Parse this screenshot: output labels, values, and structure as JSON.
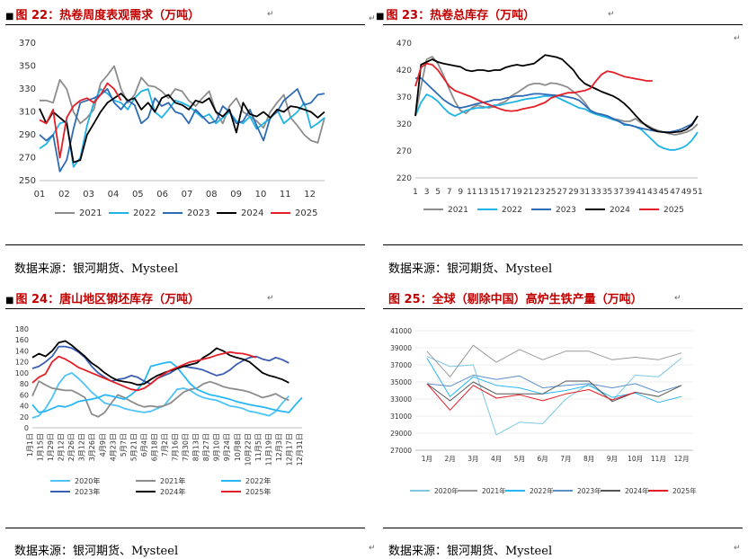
{
  "panels": [
    {
      "title_prefix": "图 22：",
      "title_text": "热卷周度表观需求（万吨）",
      "source": "数据来源：银河期货、Mysteel"
    },
    {
      "title_prefix": "图 23：",
      "title_text": "热卷总库存（万吨）",
      "source": "数据来源：银河期货、Mysteel"
    },
    {
      "title_prefix": "图 24：",
      "title_text": "唐山地区钢坯库存（万吨）",
      "source": "数据来源：银河期货、Mysteel"
    },
    {
      "title_prefix": "图 25：",
      "title_text": "全球（剔除中国）高炉生铁产量（万吨）",
      "source": "数据来源：银河期货、Mysteel"
    }
  ],
  "return_mark": "↵",
  "chart_data": [
    {
      "type": "line",
      "title": "热卷周度表观需求（万吨）",
      "x_labels": [
        "01",
        "02",
        "03",
        "04",
        "05",
        "06",
        "07",
        "08",
        "09",
        "10",
        "11",
        "12"
      ],
      "ylim": [
        250,
        370
      ],
      "yticks": [
        250,
        270,
        290,
        310,
        330,
        350,
        370
      ],
      "series": [
        {
          "name": "2021",
          "color": "#8c8c8c",
          "values": [
            320,
            320,
            318,
            338,
            330,
            310,
            300,
            305,
            312,
            335,
            342,
            350,
            330,
            318,
            325,
            340,
            333,
            332,
            328,
            322,
            330,
            328,
            320,
            315,
            322,
            328,
            310,
            300,
            315,
            322,
            310,
            306,
            302,
            296,
            310,
            318,
            325,
            305,
            298,
            290,
            285,
            283,
            305
          ]
        },
        {
          "name": "2022",
          "color": "#1eb4e6",
          "values": [
            278,
            282,
            290,
            300,
            302,
            262,
            270,
            298,
            318,
            330,
            326,
            320,
            318,
            312,
            322,
            328,
            330,
            310,
            305,
            312,
            320,
            318,
            315,
            310,
            305,
            308,
            300,
            305,
            310,
            302,
            300,
            306,
            295,
            300,
            304,
            312,
            300,
            305,
            310,
            318,
            296,
            300,
            305
          ]
        },
        {
          "name": "2023",
          "color": "#2e6bb5",
          "values": [
            290,
            285,
            290,
            258,
            268,
            295,
            318,
            320,
            322,
            325,
            330,
            318,
            312,
            320,
            316,
            300,
            305,
            322,
            315,
            318,
            310,
            308,
            300,
            312,
            306,
            300,
            302,
            315,
            310,
            300,
            302,
            312,
            298,
            285,
            305,
            310,
            320,
            325,
            330,
            316,
            318,
            325,
            326
          ]
        },
        {
          "name": "2024",
          "color": "#000000",
          "values": [
            313,
            300,
            310,
            305,
            300,
            266,
            268,
            290,
            300,
            310,
            318,
            322,
            326,
            320,
            322,
            312,
            318,
            310,
            322,
            325,
            318,
            316,
            312,
            320,
            318,
            322,
            310,
            306,
            312,
            292,
            318,
            308,
            306,
            310,
            305,
            312,
            310,
            315,
            314,
            312,
            310,
            305,
            310
          ]
        },
        {
          "name": "2025",
          "color": "#e41e26",
          "values": [
            303,
            300,
            312,
            270,
            305,
            315,
            320,
            322,
            318,
            325,
            335,
            330,
            320
          ]
        }
      ]
    },
    {
      "type": "line",
      "title": "热卷总库存（万吨）",
      "x_labels": [
        "1",
        "3",
        "5",
        "7",
        "9",
        "11",
        "13",
        "15",
        "17",
        "19",
        "21",
        "23",
        "25",
        "27",
        "29",
        "31",
        "33",
        "35",
        "37",
        "39",
        "41",
        "43",
        "45",
        "47",
        "49",
        "51"
      ],
      "ylim": [
        220,
        470
      ],
      "yticks": [
        220,
        270,
        320,
        370,
        420,
        470
      ],
      "series": [
        {
          "name": "2021",
          "color": "#8c8c8c",
          "values": [
            335,
            390,
            440,
            445,
            432,
            410,
            385,
            362,
            345,
            340,
            350,
            355,
            352,
            350,
            352,
            358,
            362,
            372,
            378,
            385,
            392,
            395,
            395,
            392,
            396,
            395,
            392,
            388,
            380,
            372,
            360,
            345,
            340,
            338,
            335,
            330,
            328,
            325,
            325,
            330,
            322,
            318,
            312,
            308,
            305,
            302,
            300,
            302,
            305,
            310,
            320
          ]
        },
        {
          "name": "2022",
          "color": "#1eb4e6",
          "values": [
            335,
            360,
            375,
            370,
            362,
            350,
            340,
            335,
            340,
            345,
            348,
            350,
            350,
            352,
            355,
            355,
            358,
            360,
            362,
            365,
            367,
            368,
            370,
            372,
            372,
            370,
            365,
            360,
            355,
            350,
            348,
            342,
            338,
            335,
            332,
            328,
            326,
            318,
            318,
            315,
            310,
            300,
            290,
            280,
            275,
            272,
            272,
            275,
            280,
            290,
            305
          ]
        },
        {
          "name": "2023",
          "color": "#2e6bb5",
          "values": [
            405,
            405,
            395,
            385,
            375,
            365,
            358,
            352,
            350,
            352,
            355,
            358,
            360,
            362,
            365,
            365,
            368,
            370,
            372,
            372,
            374,
            376,
            376,
            375,
            374,
            373,
            372,
            370,
            368,
            364,
            355,
            345,
            340,
            338,
            335,
            330,
            325,
            320,
            318,
            315,
            312,
            310,
            308,
            306,
            305,
            305,
            307,
            310,
            315,
            320,
            335
          ]
        },
        {
          "name": "2024",
          "color": "#000000",
          "values": [
            335,
            430,
            435,
            440,
            435,
            432,
            430,
            428,
            426,
            420,
            418,
            420,
            420,
            418,
            420,
            420,
            425,
            428,
            430,
            428,
            430,
            432,
            440,
            448,
            446,
            444,
            440,
            430,
            420,
            405,
            395,
            390,
            385,
            380,
            376,
            372,
            366,
            358,
            348,
            336,
            325,
            316,
            310,
            306,
            305,
            304,
            305,
            306,
            310,
            318,
            335
          ]
        },
        {
          "name": "2025",
          "color": "#e41e26",
          "values": [
            390,
            425,
            432,
            430,
            420,
            405,
            390,
            382,
            378,
            374,
            370,
            365,
            360,
            356,
            352,
            348,
            345,
            344,
            345,
            348,
            350,
            352,
            356,
            360,
            368,
            372,
            375,
            378,
            378,
            380,
            382,
            386,
            400,
            412,
            418,
            416,
            412,
            408,
            406,
            404,
            402,
            400,
            400
          ]
        }
      ]
    },
    {
      "type": "line",
      "title": "唐山地区钢坯库存（万吨）",
      "x_labels": [
        "1月1日",
        "1月15日",
        "1月29日",
        "2月12日",
        "2月26日",
        "3月12日",
        "3月26日",
        "4月9日",
        "4月23日",
        "5月7日",
        "5月21日",
        "6月4日",
        "6月18日",
        "7月2日",
        "7月16日",
        "7月30日",
        "8月13日",
        "8月27日",
        "9月10日",
        "9月24日",
        "10月8日",
        "10月22日",
        "11月5日",
        "11月19日",
        "12月3日",
        "12月17日",
        "12月31日"
      ],
      "ylim": [
        0,
        180
      ],
      "yticks": [
        0,
        20,
        40,
        60,
        80,
        100,
        120,
        140,
        160,
        180
      ],
      "series": [
        {
          "name": "2020年",
          "color": "#4fc3f7",
          "values": [
            18,
            22,
            35,
            55,
            80,
            95,
            100,
            90,
            78,
            65,
            55,
            45,
            42,
            40,
            35,
            32,
            30,
            28,
            30,
            35,
            40,
            55,
            70,
            72,
            68,
            60,
            55,
            52,
            50,
            45,
            40,
            38,
            35,
            30,
            28,
            25,
            22,
            30,
            45,
            58
          ]
        },
        {
          "name": "2021年",
          "color": "#8c8c8c",
          "values": [
            58,
            85,
            78,
            72,
            70,
            68,
            68,
            62,
            55,
            25,
            20,
            28,
            45,
            60,
            55,
            48,
            42,
            38,
            40,
            38,
            40,
            45,
            55,
            65,
            70,
            72,
            80,
            84,
            80,
            75,
            72,
            70,
            68,
            65,
            60,
            55,
            58,
            62,
            55,
            50
          ]
        },
        {
          "name": "2022年",
          "color": "#29b6f6",
          "values": [
            42,
            28,
            30,
            35,
            40,
            38,
            42,
            48,
            50,
            52,
            55,
            60,
            58,
            55,
            52,
            60,
            70,
            85,
            112,
            115,
            118,
            120,
            110,
            95,
            80,
            70,
            65,
            60,
            58,
            55,
            52,
            48,
            45,
            42,
            40,
            38,
            35,
            32,
            30,
            28,
            42,
            55
          ]
        },
        {
          "name": "2023年",
          "color": "#3a5fb0",
          "values": [
            108,
            112,
            120,
            130,
            148,
            148,
            145,
            138,
            128,
            112,
            100,
            92,
            85,
            88,
            90,
            95,
            92,
            85,
            80,
            90,
            95,
            100,
            108,
            112,
            110,
            108,
            105,
            100,
            95,
            98,
            105,
            115,
            122,
            128,
            130,
            125,
            122,
            128,
            124,
            118
          ]
        },
        {
          "name": "2024年",
          "color": "#000000",
          "values": [
            128,
            135,
            130,
            140,
            155,
            158,
            150,
            140,
            130,
            118,
            110,
            100,
            92,
            86,
            84,
            82,
            78,
            80,
            88,
            95,
            100,
            104,
            108,
            112,
            115,
            118,
            128,
            135,
            145,
            140,
            132,
            128,
            125,
            120,
            110,
            100,
            95,
            92,
            88,
            82
          ]
        },
        {
          "name": "2025年",
          "color": "#e41e26",
          "values": [
            82,
            92,
            98,
            120,
            130,
            125,
            118,
            110,
            105,
            100,
            95,
            90,
            85,
            80,
            75,
            70,
            68,
            72,
            80,
            90,
            98,
            105,
            110,
            115,
            120,
            122,
            125,
            128,
            132,
            135,
            138,
            136,
            135,
            132,
            128
          ]
        }
      ]
    },
    {
      "type": "line",
      "title": "全球（剔除中国）高炉生铁产量（万吨）",
      "x_labels": [
        "1月",
        "2月",
        "3月",
        "4月",
        "5月",
        "6月",
        "7月",
        "8月",
        "9月",
        "10月",
        "11月",
        "12月"
      ],
      "ylim": [
        27000,
        41000
      ],
      "yticks": [
        27000,
        29000,
        31000,
        33000,
        35000,
        37000,
        39000,
        41000
      ],
      "series": [
        {
          "name": "2020年",
          "color": "#7ec8e3",
          "values": [
            38000,
            36800,
            37000,
            28800,
            30300,
            30100,
            33000,
            34800,
            32800,
            35800,
            35600,
            37800
          ]
        },
        {
          "name": "2021年",
          "color": "#999999",
          "values": [
            38600,
            35600,
            39300,
            37300,
            38800,
            37600,
            38600,
            38600,
            37600,
            37900,
            37600,
            38400
          ]
        },
        {
          "name": "2022年",
          "color": "#29b6f6",
          "values": [
            37800,
            33300,
            35600,
            34600,
            34300,
            33600,
            34000,
            34600,
            33200,
            33700,
            32600,
            33300
          ]
        },
        {
          "name": "2023年",
          "color": "#5b8fc9",
          "values": [
            34800,
            34500,
            35800,
            35300,
            35700,
            34300,
            34600,
            34800,
            34300,
            34800,
            33800,
            34600
          ]
        },
        {
          "name": "2024年",
          "color": "#555555",
          "values": [
            34800,
            32800,
            35000,
            33600,
            33600,
            33600,
            35100,
            35100,
            32700,
            33800,
            33300,
            34600
          ]
        },
        {
          "name": "2025年",
          "color": "#e41e26",
          "values": [
            34800,
            31700,
            34600,
            33100,
            33500,
            32800,
            33600,
            34100,
            32900,
            33800,
            null,
            null
          ]
        }
      ]
    }
  ]
}
